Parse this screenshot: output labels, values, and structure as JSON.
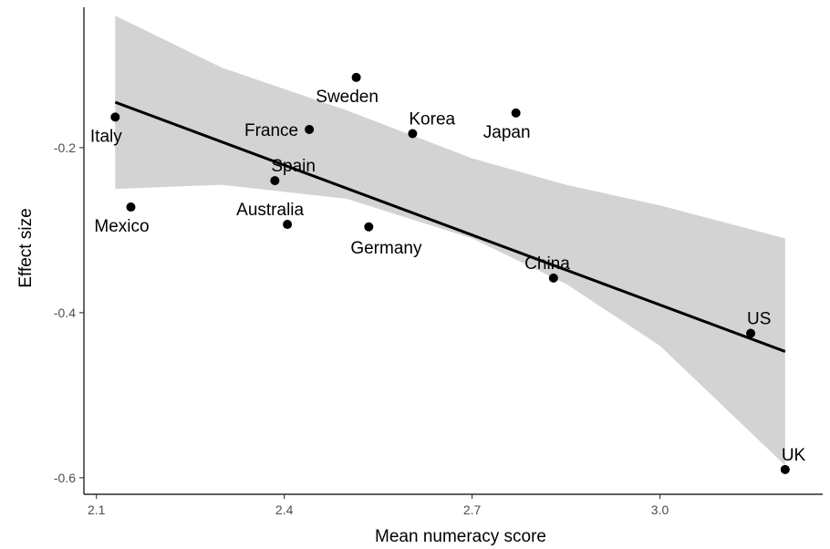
{
  "chart_data": {
    "type": "scatter",
    "title": "",
    "xlabel": "Mean numeracy score",
    "ylabel": "Effect size",
    "xlim": [
      2.08,
      3.26
    ],
    "ylim": [
      -0.62,
      -0.03
    ],
    "x_ticks": [
      2.1,
      2.4,
      2.7,
      3.0
    ],
    "x_tick_labels": [
      "2.1",
      "2.4",
      "2.7",
      "3.0"
    ],
    "y_ticks": [
      -0.2,
      -0.4,
      -0.6
    ],
    "y_tick_labels": [
      "-0.2",
      "-0.4",
      "-0.6"
    ],
    "grid": false,
    "points": [
      {
        "label": "Italy",
        "x": 2.13,
        "y": -0.163,
        "label_pos": "below-left"
      },
      {
        "label": "Mexico",
        "x": 2.155,
        "y": -0.272,
        "label_pos": "below-left"
      },
      {
        "label": "France",
        "x": 2.44,
        "y": -0.178,
        "label_pos": "left"
      },
      {
        "label": "Spain",
        "x": 2.385,
        "y": -0.24,
        "label_pos": "above-right"
      },
      {
        "label": "Australia",
        "x": 2.405,
        "y": -0.293,
        "label_pos": "above-left"
      },
      {
        "label": "Sweden",
        "x": 2.515,
        "y": -0.115,
        "label_pos": "below-left"
      },
      {
        "label": "Germany",
        "x": 2.535,
        "y": -0.296,
        "label_pos": "below-right"
      },
      {
        "label": "Korea",
        "x": 2.605,
        "y": -0.183,
        "label_pos": "above-right"
      },
      {
        "label": "Japan",
        "x": 2.77,
        "y": -0.158,
        "label_pos": "below-left"
      },
      {
        "label": "China",
        "x": 2.83,
        "y": -0.358,
        "label_pos": "above-left"
      },
      {
        "label": "US",
        "x": 3.145,
        "y": -0.425,
        "label_pos": "above-right"
      },
      {
        "label": "UK",
        "x": 3.2,
        "y": -0.59,
        "label_pos": "above-right"
      }
    ],
    "regression_line": {
      "x": [
        2.13,
        3.2
      ],
      "y": [
        -0.145,
        -0.447
      ]
    },
    "confidence_band": {
      "x": [
        2.13,
        2.3,
        2.5,
        2.7,
        2.85,
        3.0,
        3.2
      ],
      "upper": [
        -0.04,
        -0.103,
        -0.155,
        -0.213,
        -0.245,
        -0.27,
        -0.31
      ],
      "lower": [
        -0.25,
        -0.245,
        -0.262,
        -0.31,
        -0.365,
        -0.44,
        -0.585
      ]
    },
    "colors": {
      "points": "#000000",
      "line": "#000000",
      "band": "#d3d3d3",
      "axis": "#000000",
      "tick_text": "#4d4d4d"
    }
  }
}
